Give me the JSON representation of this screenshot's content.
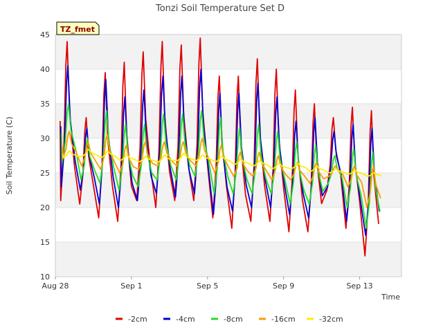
{
  "chart_data": {
    "type": "line",
    "title": "Tonzi Soil Temperature Set D",
    "xlabel": "Time",
    "ylabel": "Soil Temperature (C)",
    "site_label": "TZ_fmet",
    "xlim_days": [
      0,
      18.2
    ],
    "ylim": [
      10,
      45
    ],
    "yticks": [
      10,
      15,
      20,
      25,
      30,
      35,
      40,
      45
    ],
    "xticks": [
      {
        "label": "Aug 28",
        "day": 0
      },
      {
        "label": "Sep 1",
        "day": 4
      },
      {
        "label": "Sep 5",
        "day": 8
      },
      {
        "label": "Sep 9",
        "day": 12
      },
      {
        "label": "Sep 13",
        "day": 16
      }
    ],
    "grid": "horizontal bands",
    "legend_position": "bottom",
    "series": [
      {
        "name": "-2cm",
        "color": "#e00000",
        "min": [
          21,
          20.5,
          18.5,
          18,
          21,
          20,
          21,
          21,
          18.5,
          17,
          18,
          18,
          16.5,
          16.5,
          22.5,
          17,
          13
        ],
        "max": [
          44,
          33,
          39.5,
          41,
          42.5,
          44,
          43.5,
          44.5,
          39,
          39,
          41.5,
          40,
          37,
          35,
          33,
          34.5,
          34
        ]
      },
      {
        "name": "-4cm",
        "color": "#0000d0",
        "min": [
          23,
          22.5,
          20.5,
          20,
          21,
          22,
          21.5,
          22,
          19,
          19.5,
          20,
          20,
          19,
          18.5,
          23,
          18,
          16
        ],
        "max": [
          40.5,
          31.5,
          38.5,
          36,
          37,
          39,
          39,
          40,
          36.5,
          36.5,
          38,
          36,
          32.5,
          33,
          31,
          32,
          31.5
        ]
      },
      {
        "name": "-8cm",
        "color": "#22dd22",
        "min": [
          26.5,
          24,
          23.5,
          22.5,
          23,
          24,
          24,
          24.5,
          22,
          22,
          22,
          22,
          20.5,
          20.5,
          23.5,
          20,
          17
        ],
        "max": [
          35,
          30,
          34,
          32,
          32,
          33.5,
          33.5,
          34,
          33,
          31.5,
          32,
          31,
          29.5,
          29,
          27.5,
          28.5,
          28
        ]
      },
      {
        "name": "-16cm",
        "color": "#ff9900",
        "min": [
          27,
          26,
          25.5,
          25,
          25.5,
          26,
          26,
          26,
          25,
          24.5,
          24.5,
          24,
          24,
          23.5,
          24.5,
          23,
          20
        ],
        "max": [
          31,
          29.5,
          30.5,
          29,
          29.5,
          29.5,
          29.5,
          30,
          29,
          28,
          28,
          27.5,
          26.5,
          26.5,
          26,
          26,
          26
        ]
      },
      {
        "name": "-32cm",
        "color": "#ffee00",
        "min": [
          27.2,
          27.4,
          27.2,
          26.8,
          26.6,
          26.6,
          26.8,
          26.8,
          26.6,
          26.2,
          26,
          25.6,
          25.6,
          25.2,
          25,
          24.8,
          24.5
        ],
        "max": [
          28.2,
          28.4,
          28.2,
          27.6,
          27.4,
          27.6,
          27.8,
          27.6,
          27.4,
          27,
          26.8,
          26.4,
          26.4,
          26,
          25.6,
          25.4,
          25
        ]
      }
    ]
  }
}
